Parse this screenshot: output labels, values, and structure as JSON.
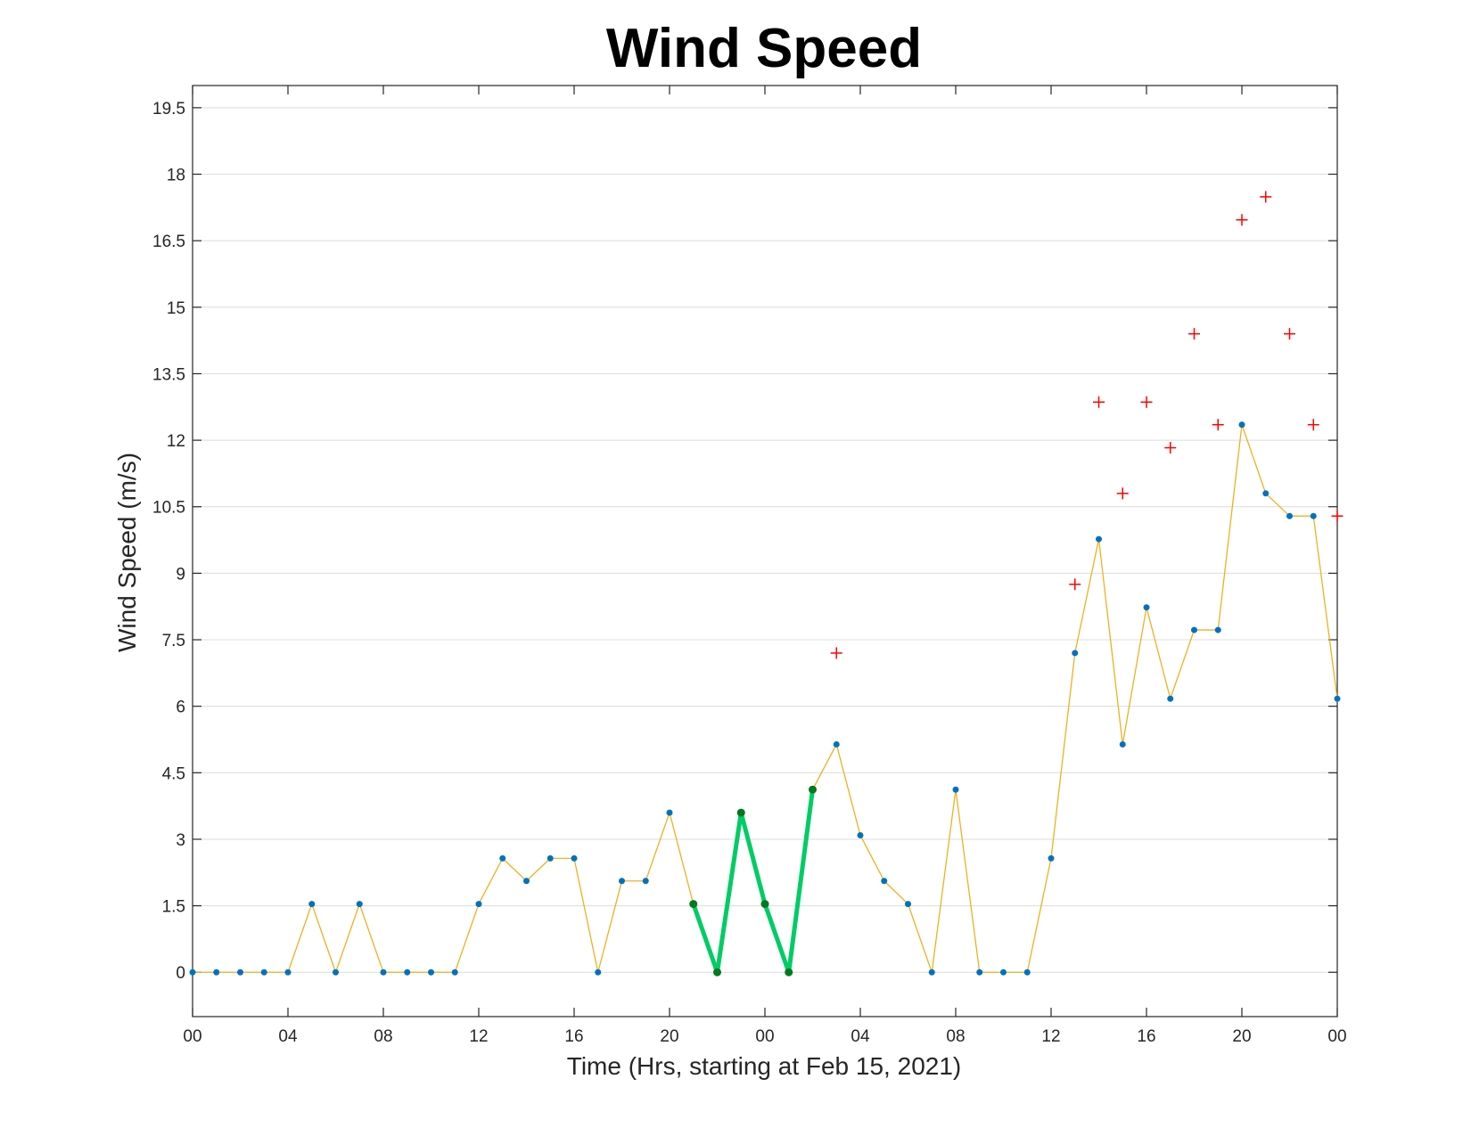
{
  "chart_data": {
    "type": "line",
    "title": "Wind Speed",
    "xlabel": "Time (Hrs, starting at Feb 15, 2021)",
    "ylabel": "Wind Speed (m/s)",
    "xlim": [
      0,
      48
    ],
    "ylim": [
      -1,
      20
    ],
    "grid": "horizontal",
    "x_ticks": [
      {
        "x": 0,
        "label": "00"
      },
      {
        "x": 4,
        "label": "04"
      },
      {
        "x": 8,
        "label": "08"
      },
      {
        "x": 12,
        "label": "12"
      },
      {
        "x": 16,
        "label": "16"
      },
      {
        "x": 20,
        "label": "20"
      },
      {
        "x": 24,
        "label": "00"
      },
      {
        "x": 28,
        "label": "04"
      },
      {
        "x": 32,
        "label": "08"
      },
      {
        "x": 36,
        "label": "12"
      },
      {
        "x": 40,
        "label": "16"
      },
      {
        "x": 44,
        "label": "20"
      },
      {
        "x": 48,
        "label": "00"
      }
    ],
    "y_ticks": [
      {
        "y": 0,
        "label": "0"
      },
      {
        "y": 1.5,
        "label": "1.5"
      },
      {
        "y": 3,
        "label": "3"
      },
      {
        "y": 4.5,
        "label": "4.5"
      },
      {
        "y": 6,
        "label": "6"
      },
      {
        "y": 7.5,
        "label": "7.5"
      },
      {
        "y": 9,
        "label": "9"
      },
      {
        "y": 10.5,
        "label": "10.5"
      },
      {
        "y": 12,
        "label": "12"
      },
      {
        "y": 13.5,
        "label": "13.5"
      },
      {
        "y": 15,
        "label": "15"
      },
      {
        "y": 16.5,
        "label": "16.5"
      },
      {
        "y": 18,
        "label": "18"
      },
      {
        "y": 19.5,
        "label": "19.5"
      }
    ],
    "series": [
      {
        "style": "line-markers",
        "line_color": "#EDB120",
        "marker_color": "#0072BD",
        "x": [
          0,
          1,
          2,
          3,
          4,
          5,
          6,
          7,
          8,
          9,
          10,
          11,
          12,
          13,
          14,
          15,
          16,
          17,
          18,
          19,
          20,
          21,
          22,
          23,
          24,
          25,
          26,
          27,
          28,
          29,
          30,
          31,
          32,
          33,
          34,
          35,
          36,
          37,
          38,
          39,
          40,
          41,
          42,
          43,
          44,
          45,
          46,
          47,
          48
        ],
        "values": [
          0,
          0,
          0,
          0,
          0,
          1.54,
          0,
          1.54,
          0,
          0,
          0,
          0,
          1.54,
          2.57,
          2.06,
          2.57,
          2.57,
          0,
          2.06,
          2.06,
          3.6,
          1.54,
          0,
          3.6,
          1.54,
          0,
          4.12,
          5.14,
          3.09,
          2.06,
          1.54,
          0,
          4.12,
          0,
          0,
          0,
          2.57,
          7.2,
          9.77,
          5.14,
          8.23,
          6.17,
          7.72,
          7.72,
          12.35,
          10.8,
          10.29,
          10.29,
          6.17
        ]
      },
      {
        "style": "highlight-line",
        "line_color": "#00CC66",
        "marker_color": "#007A1F",
        "x": [
          21,
          22,
          23,
          24,
          25,
          26
        ],
        "values": [
          1.54,
          0,
          3.6,
          1.54,
          0,
          4.12
        ]
      },
      {
        "style": "plus-markers",
        "marker_color": "#FF0000",
        "x": [
          27,
          37,
          38,
          39,
          40,
          41,
          42,
          43,
          44,
          45,
          46,
          47,
          48
        ],
        "values": [
          7.2,
          8.75,
          12.86,
          10.8,
          12.86,
          11.83,
          14.4,
          12.35,
          16.97,
          17.49,
          14.4,
          12.35,
          10.29
        ]
      }
    ]
  }
}
